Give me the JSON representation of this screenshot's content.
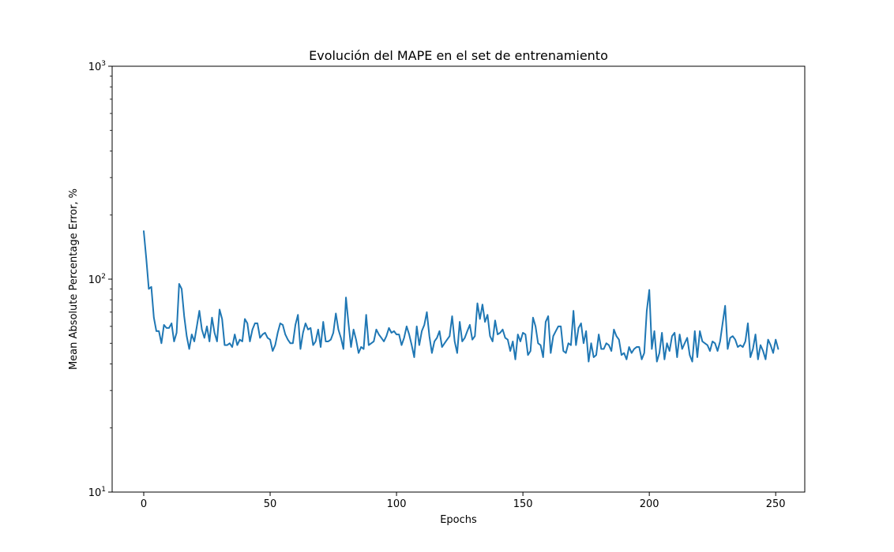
{
  "chart_data": {
    "type": "line",
    "title": "Evolución del MAPE en el set de entrenamiento",
    "xlabel": "Epochs",
    "ylabel": "Mean Absolute Percentage Error, %",
    "yscale": "log",
    "xlim": [
      -12.5,
      261.5
    ],
    "ylim": [
      10,
      1000
    ],
    "xticks": [
      0,
      50,
      100,
      150,
      200,
      250
    ],
    "xtick_labels": [
      "0",
      "50",
      "100",
      "150",
      "200",
      "250"
    ],
    "yticks": [
      10,
      100,
      1000
    ],
    "ytick_labels": [
      {
        "base": "10",
        "exp": "1"
      },
      {
        "base": "10",
        "exp": "2"
      },
      {
        "base": "10",
        "exp": "3"
      }
    ],
    "grid": false,
    "line_color": "#1f77b4",
    "series": [
      {
        "name": "",
        "x_start": 0,
        "x_step": 1,
        "values": [
          168,
          125,
          90,
          92,
          66,
          57,
          57,
          50,
          61,
          59,
          59,
          62,
          51,
          56,
          95,
          90,
          67,
          54,
          47,
          55,
          51,
          60,
          71,
          58,
          53,
          60,
          51,
          66,
          56,
          51,
          72,
          65,
          49,
          49,
          50,
          48,
          55,
          49,
          52,
          51,
          65,
          62,
          51,
          58,
          62,
          62,
          53,
          55,
          56,
          53,
          52,
          46,
          49,
          56,
          62,
          61,
          55,
          52,
          50,
          50,
          61,
          68,
          47,
          56,
          62,
          58,
          59,
          49,
          51,
          58,
          48,
          63,
          51,
          51,
          52,
          56,
          69,
          58,
          53,
          47,
          82,
          62,
          48,
          58,
          52,
          45,
          48,
          47,
          68,
          49,
          50,
          51,
          58,
          55,
          53,
          51,
          54,
          59,
          56,
          57,
          55,
          55,
          49,
          53,
          60,
          55,
          49,
          43,
          60,
          49,
          57,
          61,
          70,
          54,
          45,
          51,
          53,
          57,
          48,
          50,
          52,
          54,
          67,
          51,
          45,
          63,
          51,
          53,
          57,
          61,
          52,
          54,
          77,
          65,
          76,
          63,
          68,
          54,
          51,
          64,
          55,
          56,
          58,
          53,
          52,
          46,
          51,
          42,
          55,
          51,
          56,
          55,
          44,
          46,
          66,
          60,
          50,
          49,
          43,
          63,
          67,
          45,
          54,
          57,
          60,
          60,
          46,
          45,
          50,
          49,
          71,
          49,
          59,
          62,
          50,
          57,
          41,
          50,
          43,
          44,
          55,
          47,
          47,
          50,
          49,
          46,
          58,
          54,
          52,
          44,
          45,
          42,
          48,
          45,
          47,
          48,
          48,
          42,
          45,
          71,
          89,
          47,
          57,
          41,
          45,
          56,
          42,
          50,
          46,
          54,
          56,
          43,
          55,
          47,
          50,
          53,
          44,
          41,
          57,
          43,
          57,
          51,
          50,
          49,
          46,
          51,
          50,
          46,
          51,
          62,
          75,
          47,
          53,
          54,
          52,
          48,
          49,
          48,
          51,
          62,
          43,
          47,
          55,
          42,
          49,
          46,
          42,
          52,
          49,
          45,
          52,
          47
        ]
      }
    ]
  }
}
